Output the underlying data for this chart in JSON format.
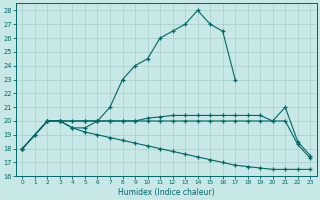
{
  "xlabel": "Humidex (Indice chaleur)",
  "background_color": "#c8e8e8",
  "grid_color": "#a8cccc",
  "line_color": "#006666",
  "xlim": [
    -0.5,
    23.5
  ],
  "ylim": [
    16,
    28.5
  ],
  "xticks": [
    0,
    1,
    2,
    3,
    4,
    5,
    6,
    7,
    8,
    9,
    10,
    11,
    12,
    13,
    14,
    15,
    16,
    17,
    18,
    19,
    20,
    21,
    22,
    23
  ],
  "yticks": [
    16,
    17,
    18,
    19,
    20,
    21,
    22,
    23,
    24,
    25,
    26,
    27,
    28
  ],
  "series1_x": [
    0,
    1,
    2,
    3,
    4,
    5,
    6,
    7,
    8,
    9,
    10,
    11,
    12,
    13,
    14,
    15,
    16,
    17
  ],
  "series1_y": [
    18,
    19,
    20,
    20,
    19.5,
    19.5,
    20,
    21,
    23,
    24,
    24.5,
    26,
    26.5,
    27,
    28,
    27,
    26.5,
    23
  ],
  "series2_x": [
    0,
    2,
    3,
    5,
    6,
    7,
    8,
    9,
    10,
    11,
    12,
    13,
    14,
    15,
    16,
    17,
    18,
    19,
    20,
    21,
    22,
    23
  ],
  "series2_y": [
    18,
    20,
    20,
    20,
    20,
    20,
    20,
    20,
    20.2,
    20.3,
    20.4,
    20.4,
    20.4,
    20.4,
    20.4,
    20.4,
    20.4,
    20.4,
    20,
    21,
    18.5,
    17.5
  ],
  "series3_x": [
    0,
    2,
    3,
    4,
    5,
    6,
    7,
    8,
    9,
    10,
    11,
    12,
    13,
    14,
    15,
    16,
    17,
    18,
    19,
    20,
    21,
    22,
    23
  ],
  "series3_y": [
    18,
    20,
    20,
    20,
    20,
    20,
    20,
    20,
    20,
    20,
    20,
    20,
    20,
    20,
    20,
    20,
    20,
    20,
    20,
    20,
    20,
    18.3,
    17.3
  ],
  "series4_x": [
    0,
    1,
    2,
    3,
    4,
    5,
    6,
    7,
    8,
    9,
    10,
    11,
    12,
    13,
    14,
    15,
    16,
    17,
    18,
    19,
    20,
    21,
    22,
    23
  ],
  "series4_y": [
    18,
    19,
    20,
    20,
    19.5,
    19.2,
    19.0,
    18.8,
    18.6,
    18.4,
    18.2,
    18.0,
    17.8,
    17.6,
    17.4,
    17.2,
    17.0,
    16.8,
    16.7,
    16.6,
    16.5,
    16.5,
    16.5,
    16.5
  ]
}
